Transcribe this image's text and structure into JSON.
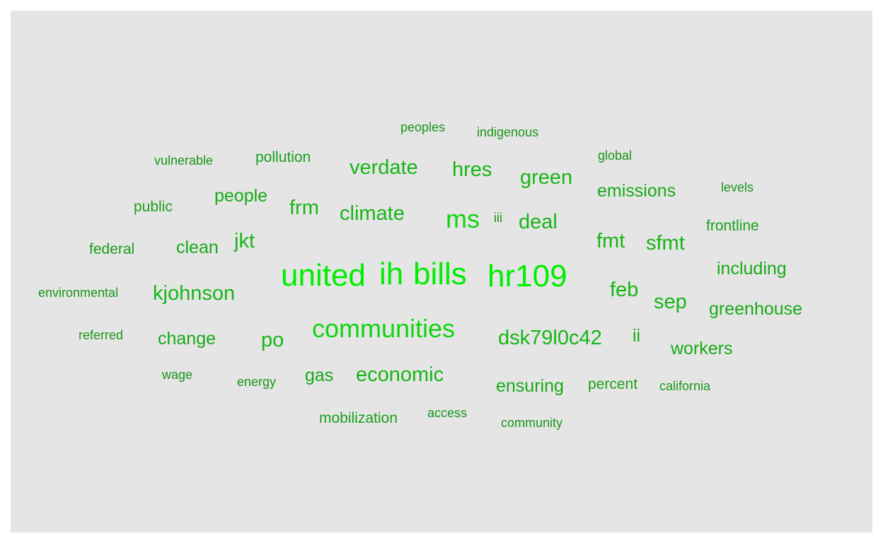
{
  "background_color": "#e5e5e5",
  "word_color": "#00cc00",
  "words": {
    "united": "united",
    "ih": "ih",
    "bills": "bills",
    "hr109": "hr109",
    "ms": "ms",
    "communities": "communities",
    "kjohnson": "kjohnson",
    "dsk79l0c42": "dsk79l0c42",
    "climate": "climate",
    "economic": "economic",
    "verdate": "verdate",
    "deal": "deal",
    "fmt": "fmt",
    "sfmt": "sfmt",
    "feb": "feb",
    "sep": "sep",
    "jkt": "jkt",
    "frm": "frm",
    "po": "po",
    "hres": "hres",
    "green": "green",
    "emissions": "emissions",
    "people": "people",
    "clean": "clean",
    "change": "change",
    "including": "including",
    "greenhouse": "greenhouse",
    "frontline": "frontline",
    "workers": "workers",
    "ensuring": "ensuring",
    "gas": "gas",
    "pollution": "pollution",
    "public": "public",
    "federal": "federal",
    "environmental": "environmental",
    "referred": "referred",
    "wage": "wage",
    "energy": "energy",
    "mobilization": "mobilization",
    "access": "access",
    "community": "community",
    "percent": "percent",
    "california": "california",
    "peoples": "peoples",
    "indigenous": "indigenous",
    "global": "global",
    "levels": "levels",
    "vulnerable": "vulnerable",
    "iii": "iii",
    "ii": "ii"
  }
}
